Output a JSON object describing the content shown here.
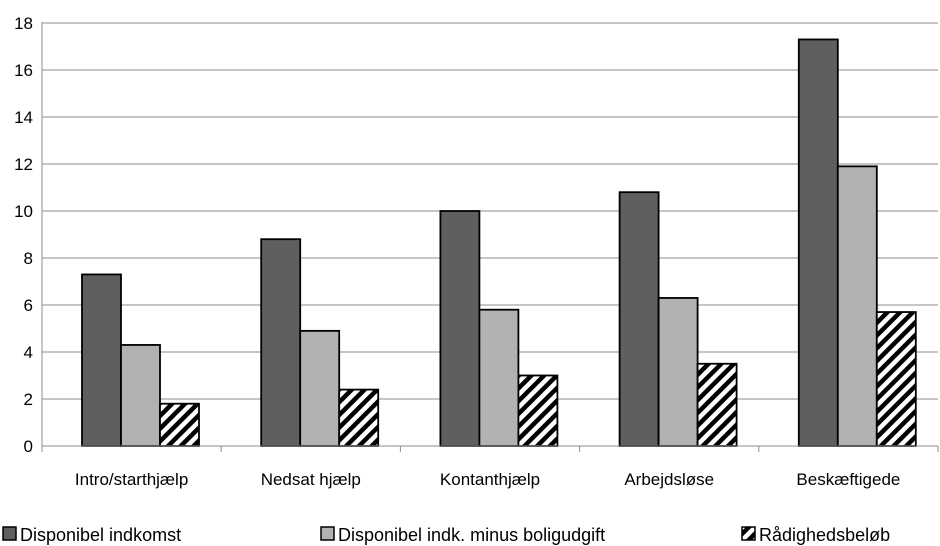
{
  "chart_data": {
    "type": "bar",
    "categories": [
      "Intro/starthjælp",
      "Nedsat hjælp",
      "Kontanthjælp",
      "Arbejdsløse",
      "Beskæftigede"
    ],
    "series": [
      {
        "name": "Disponibel indkomst",
        "values": [
          7.3,
          8.8,
          10.0,
          10.8,
          17.3
        ],
        "color": "#5f5f5f",
        "pattern": "solid"
      },
      {
        "name": "Disponibel indk. minus boligudgift",
        "values": [
          4.3,
          4.9,
          5.8,
          6.3,
          11.9
        ],
        "color": "#b2b2b2",
        "pattern": "solid"
      },
      {
        "name": "Rådighedsbeløb",
        "values": [
          1.8,
          2.4,
          3.0,
          3.5,
          5.7
        ],
        "color": "#000000",
        "pattern": "diagonal-hatch"
      }
    ],
    "y_ticks": [
      "0",
      "2",
      "4",
      "6",
      "8",
      "10",
      "12",
      "14",
      "16",
      "18"
    ],
    "ylim": [
      0,
      18
    ],
    "grid": true,
    "legend_position": "bottom",
    "title": "",
    "xlabel": "",
    "ylabel": ""
  }
}
